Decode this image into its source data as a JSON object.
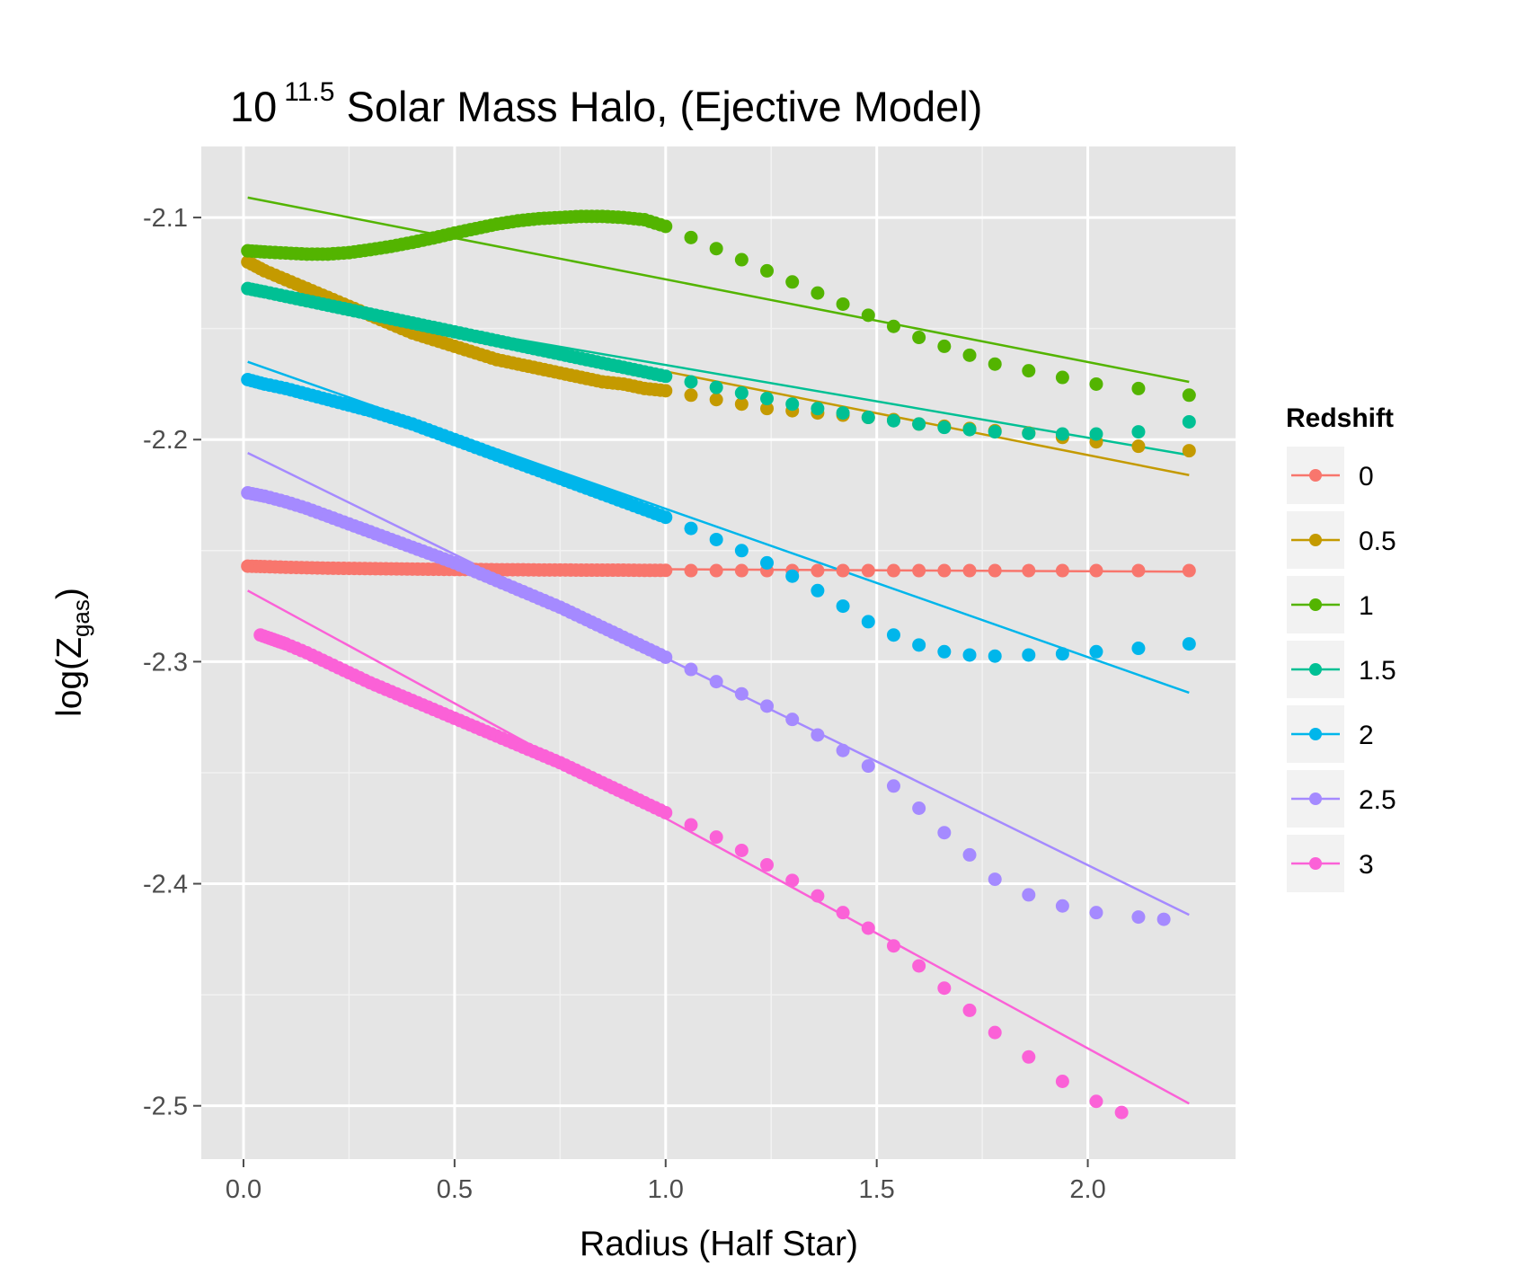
{
  "chart_data": {
    "type": "scatter",
    "title": {
      "base": "10",
      "exponent": "11.5",
      "rest": " Solar Mass Halo, (Ejective Model)"
    },
    "xlabel": "Radius (Half Star)",
    "ylabel": {
      "prefix": "log(Z",
      "subscript": "gas",
      "suffix": ")"
    },
    "xlim": [
      -0.1,
      2.35
    ],
    "ylim": [
      -2.524,
      -2.068
    ],
    "x_ticks": [
      0.0,
      0.5,
      1.0,
      1.5,
      2.0
    ],
    "x_tick_labels": [
      "0.0",
      "0.5",
      "1.0",
      "1.5",
      "2.0"
    ],
    "y_ticks": [
      -2.1,
      -2.2,
      -2.3,
      -2.4,
      -2.5
    ],
    "y_tick_labels": [
      "-2.1",
      "-2.2",
      "-2.3",
      "-2.4",
      "-2.5"
    ],
    "grid": true,
    "legend": {
      "title": "Redshift",
      "position": "right"
    },
    "series": [
      {
        "name": "0",
        "color": "#F8766D",
        "x": [
          0.01,
          0.05,
          0.1,
          0.15,
          0.2,
          0.25,
          0.3,
          0.35,
          0.4,
          0.45,
          0.5,
          0.55,
          0.6,
          0.65,
          0.7,
          0.75,
          0.8,
          0.85,
          0.9,
          0.95,
          1.0,
          1.06,
          1.12,
          1.18,
          1.24,
          1.3,
          1.36,
          1.42,
          1.48,
          1.54,
          1.6,
          1.66,
          1.72,
          1.78,
          1.86,
          1.94,
          2.02,
          2.12,
          2.24
        ],
        "y": [
          -2.257,
          -2.2572,
          -2.2575,
          -2.2577,
          -2.2579,
          -2.258,
          -2.2581,
          -2.2582,
          -2.2583,
          -2.2584,
          -2.2585,
          -2.2585,
          -2.2586,
          -2.2586,
          -2.2587,
          -2.2587,
          -2.2588,
          -2.2588,
          -2.2588,
          -2.2589,
          -2.2589,
          -2.259,
          -2.259,
          -2.259,
          -2.259,
          -2.259,
          -2.259,
          -2.259,
          -2.259,
          -2.259,
          -2.259,
          -2.259,
          -2.259,
          -2.259,
          -2.259,
          -2.259,
          -2.259,
          -2.259,
          -2.259
        ],
        "fit": [
          [
            0.01,
            -2.2575
          ],
          [
            2.24,
            -2.2595
          ]
        ]
      },
      {
        "name": "0.5",
        "color": "#C49A00",
        "x": [
          0.01,
          0.05,
          0.1,
          0.15,
          0.2,
          0.25,
          0.3,
          0.35,
          0.4,
          0.45,
          0.5,
          0.55,
          0.6,
          0.65,
          0.7,
          0.75,
          0.8,
          0.85,
          0.9,
          0.95,
          1.0,
          1.06,
          1.12,
          1.18,
          1.24,
          1.3,
          1.36,
          1.42,
          1.48,
          1.54,
          1.6,
          1.66,
          1.72,
          1.78,
          1.86,
          1.94,
          2.02,
          2.12,
          2.24
        ],
        "y": [
          -2.12,
          -2.124,
          -2.128,
          -2.132,
          -2.136,
          -2.14,
          -2.144,
          -2.148,
          -2.152,
          -2.155,
          -2.158,
          -2.161,
          -2.164,
          -2.166,
          -2.168,
          -2.17,
          -2.172,
          -2.174,
          -2.175,
          -2.177,
          -2.178,
          -2.18,
          -2.182,
          -2.184,
          -2.186,
          -2.187,
          -2.188,
          -2.189,
          -2.19,
          -2.191,
          -2.193,
          -2.194,
          -2.195,
          -2.196,
          -2.197,
          -2.199,
          -2.201,
          -2.203,
          -2.205
        ],
        "fit": [
          [
            0.01,
            -2.132
          ],
          [
            2.24,
            -2.216
          ]
        ]
      },
      {
        "name": "1",
        "color": "#53B400",
        "x": [
          0.01,
          0.05,
          0.1,
          0.15,
          0.2,
          0.25,
          0.3,
          0.35,
          0.4,
          0.45,
          0.5,
          0.55,
          0.6,
          0.65,
          0.7,
          0.75,
          0.8,
          0.85,
          0.9,
          0.95,
          1.0,
          1.06,
          1.12,
          1.18,
          1.24,
          1.3,
          1.36,
          1.42,
          1.48,
          1.54,
          1.6,
          1.66,
          1.72,
          1.78,
          1.86,
          1.94,
          2.02,
          2.12,
          2.24
        ],
        "y": [
          -2.115,
          -2.1155,
          -2.116,
          -2.1165,
          -2.1165,
          -2.1158,
          -2.1145,
          -2.113,
          -2.1112,
          -2.1092,
          -2.107,
          -2.105,
          -2.103,
          -2.1015,
          -2.1005,
          -2.1,
          -2.0995,
          -2.0995,
          -2.1,
          -2.101,
          -2.104,
          -2.109,
          -2.114,
          -2.119,
          -2.124,
          -2.129,
          -2.134,
          -2.139,
          -2.144,
          -2.149,
          -2.154,
          -2.158,
          -2.162,
          -2.166,
          -2.169,
          -2.172,
          -2.175,
          -2.177,
          -2.18
        ],
        "fit": [
          [
            0.01,
            -2.091
          ],
          [
            2.24,
            -2.174
          ]
        ]
      },
      {
        "name": "1.5",
        "color": "#00C094",
        "x": [
          0.01,
          0.05,
          0.1,
          0.15,
          0.2,
          0.25,
          0.3,
          0.35,
          0.4,
          0.45,
          0.5,
          0.55,
          0.6,
          0.65,
          0.7,
          0.75,
          0.8,
          0.85,
          0.9,
          0.95,
          1.0,
          1.06,
          1.12,
          1.18,
          1.24,
          1.3,
          1.36,
          1.42,
          1.48,
          1.54,
          1.6,
          1.66,
          1.72,
          1.78,
          1.86,
          1.94,
          2.02,
          2.12,
          2.24
        ],
        "y": [
          -2.132,
          -2.1335,
          -2.1355,
          -2.1375,
          -2.1395,
          -2.1415,
          -2.1435,
          -2.1455,
          -2.1475,
          -2.1495,
          -2.1515,
          -2.1535,
          -2.1555,
          -2.1575,
          -2.1595,
          -2.1615,
          -2.1635,
          -2.1655,
          -2.1675,
          -2.1695,
          -2.1715,
          -2.174,
          -2.1765,
          -2.179,
          -2.1815,
          -2.184,
          -2.186,
          -2.188,
          -2.19,
          -2.1915,
          -2.193,
          -2.1945,
          -2.1955,
          -2.1965,
          -2.1972,
          -2.1975,
          -2.1975,
          -2.1965,
          -2.192
        ],
        "fit": [
          [
            0.01,
            -2.134
          ],
          [
            2.24,
            -2.207
          ]
        ]
      },
      {
        "name": "2",
        "color": "#00B6EB",
        "x": [
          0.01,
          0.05,
          0.1,
          0.15,
          0.2,
          0.25,
          0.3,
          0.35,
          0.4,
          0.45,
          0.5,
          0.55,
          0.6,
          0.65,
          0.7,
          0.75,
          0.8,
          0.85,
          0.9,
          0.95,
          1.0,
          1.06,
          1.12,
          1.18,
          1.24,
          1.3,
          1.36,
          1.42,
          1.48,
          1.54,
          1.6,
          1.66,
          1.72,
          1.78,
          1.86,
          1.94,
          2.02,
          2.12,
          2.24
        ],
        "y": [
          -2.173,
          -2.175,
          -2.177,
          -2.1795,
          -2.182,
          -2.1845,
          -2.187,
          -2.19,
          -2.193,
          -2.1965,
          -2.2,
          -2.2035,
          -2.207,
          -2.2105,
          -2.214,
          -2.2175,
          -2.221,
          -2.2245,
          -2.228,
          -2.2315,
          -2.235,
          -2.24,
          -2.245,
          -2.25,
          -2.2555,
          -2.2615,
          -2.268,
          -2.275,
          -2.282,
          -2.288,
          -2.2925,
          -2.2955,
          -2.297,
          -2.2975,
          -2.297,
          -2.2965,
          -2.2955,
          -2.294,
          -2.292
        ],
        "fit": [
          [
            0.01,
            -2.165
          ],
          [
            2.24,
            -2.314
          ]
        ]
      },
      {
        "name": "2.5",
        "color": "#A58AFF",
        "x": [
          0.01,
          0.05,
          0.1,
          0.15,
          0.2,
          0.25,
          0.3,
          0.35,
          0.4,
          0.45,
          0.5,
          0.55,
          0.6,
          0.65,
          0.7,
          0.75,
          0.8,
          0.85,
          0.9,
          0.95,
          1.0,
          1.06,
          1.12,
          1.18,
          1.24,
          1.3,
          1.36,
          1.42,
          1.48,
          1.54,
          1.6,
          1.66,
          1.72,
          1.78,
          1.86,
          1.94,
          2.02,
          2.12,
          2.18
        ],
        "y": [
          -2.224,
          -2.2255,
          -2.228,
          -2.231,
          -2.2345,
          -2.238,
          -2.2415,
          -2.245,
          -2.2485,
          -2.252,
          -2.2555,
          -2.2595,
          -2.2635,
          -2.2675,
          -2.2715,
          -2.2755,
          -2.28,
          -2.2845,
          -2.289,
          -2.2935,
          -2.298,
          -2.3035,
          -2.309,
          -2.3145,
          -2.32,
          -2.326,
          -2.333,
          -2.34,
          -2.347,
          -2.356,
          -2.366,
          -2.377,
          -2.387,
          -2.398,
          -2.405,
          -2.41,
          -2.413,
          -2.415,
          -2.416
        ],
        "fit": [
          [
            0.01,
            -2.206
          ],
          [
            2.24,
            -2.414
          ]
        ]
      },
      {
        "name": "3",
        "color": "#FB61D7",
        "x": [
          0.04,
          0.07,
          0.1,
          0.15,
          0.2,
          0.25,
          0.3,
          0.35,
          0.4,
          0.45,
          0.5,
          0.55,
          0.6,
          0.65,
          0.7,
          0.75,
          0.8,
          0.85,
          0.9,
          0.95,
          1.0,
          1.06,
          1.12,
          1.18,
          1.24,
          1.3,
          1.36,
          1.42,
          1.48,
          1.54,
          1.6,
          1.66,
          1.72,
          1.78,
          1.86,
          1.94,
          2.02,
          2.08
        ],
        "y": [
          -2.288,
          -2.29,
          -2.292,
          -2.296,
          -2.3005,
          -2.305,
          -2.3095,
          -2.3135,
          -2.3175,
          -2.3215,
          -2.3255,
          -2.3295,
          -2.3335,
          -2.3375,
          -2.3415,
          -2.3455,
          -2.35,
          -2.3545,
          -2.359,
          -2.3635,
          -2.368,
          -2.3735,
          -2.379,
          -2.385,
          -2.3915,
          -2.3985,
          -2.4055,
          -2.413,
          -2.42,
          -2.428,
          -2.437,
          -2.447,
          -2.457,
          -2.467,
          -2.478,
          -2.489,
          -2.498,
          -2.503
        ],
        "fit": [
          [
            0.01,
            -2.268
          ],
          [
            2.24,
            -2.499
          ]
        ]
      }
    ]
  }
}
